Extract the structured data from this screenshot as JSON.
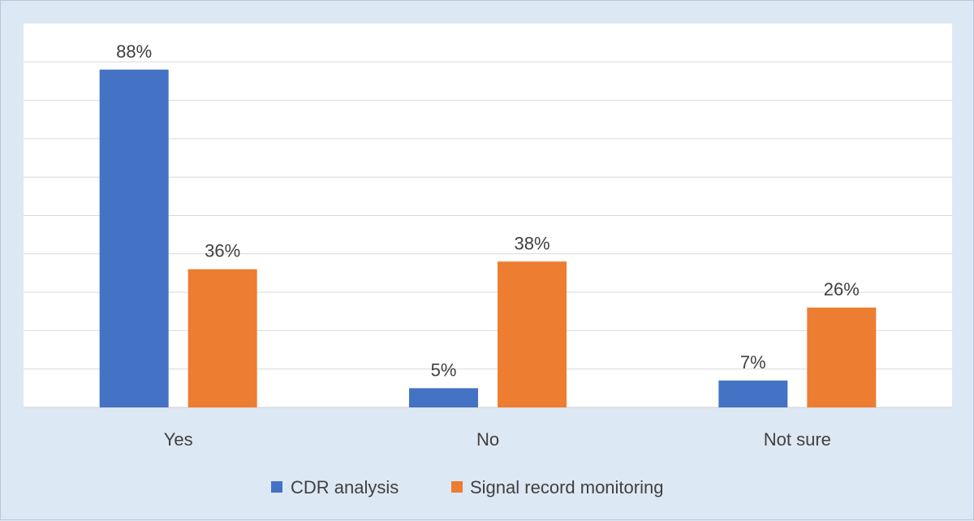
{
  "chart_data": {
    "type": "bar",
    "categories": [
      "Yes",
      "No",
      "Not sure"
    ],
    "series": [
      {
        "name": "CDR analysis",
        "values": [
          88,
          5,
          7
        ],
        "labels": [
          "88%",
          "5%",
          "7%"
        ],
        "color": "#4472c4"
      },
      {
        "name": "Signal record monitoring",
        "values": [
          36,
          38,
          26
        ],
        "labels": [
          "36%",
          "38%",
          "26%"
        ],
        "color": "#ed7d31"
      }
    ],
    "ylim": [
      0,
      90
    ],
    "grid": true,
    "legend": "bottom",
    "title": "",
    "xlabel": "",
    "ylabel": ""
  }
}
